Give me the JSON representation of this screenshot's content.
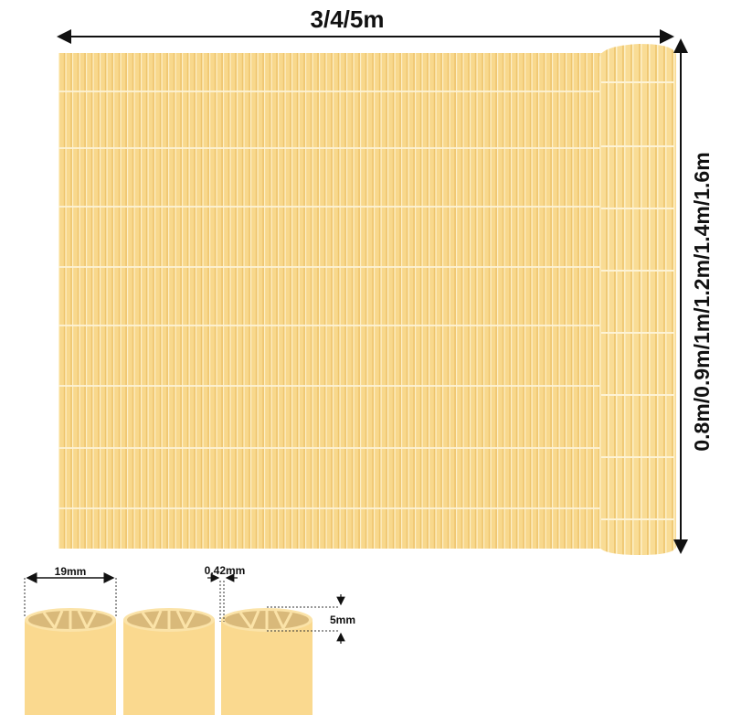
{
  "dimensions": {
    "length_label": "3/4/5m",
    "height_label": "0.8m/0.9m/1m/1.2m/1.4m/1.6m"
  },
  "detail": {
    "slat_diameter_label": "19mm",
    "gap_label": "0.42mm",
    "depth_label": "5mm"
  },
  "colors": {
    "fence": "#f8d88c",
    "slat_highlight": "#fde9b4",
    "slat_shadow": "#eec56e",
    "tube_inner": "#d9b97a",
    "arrow": "#111111"
  }
}
